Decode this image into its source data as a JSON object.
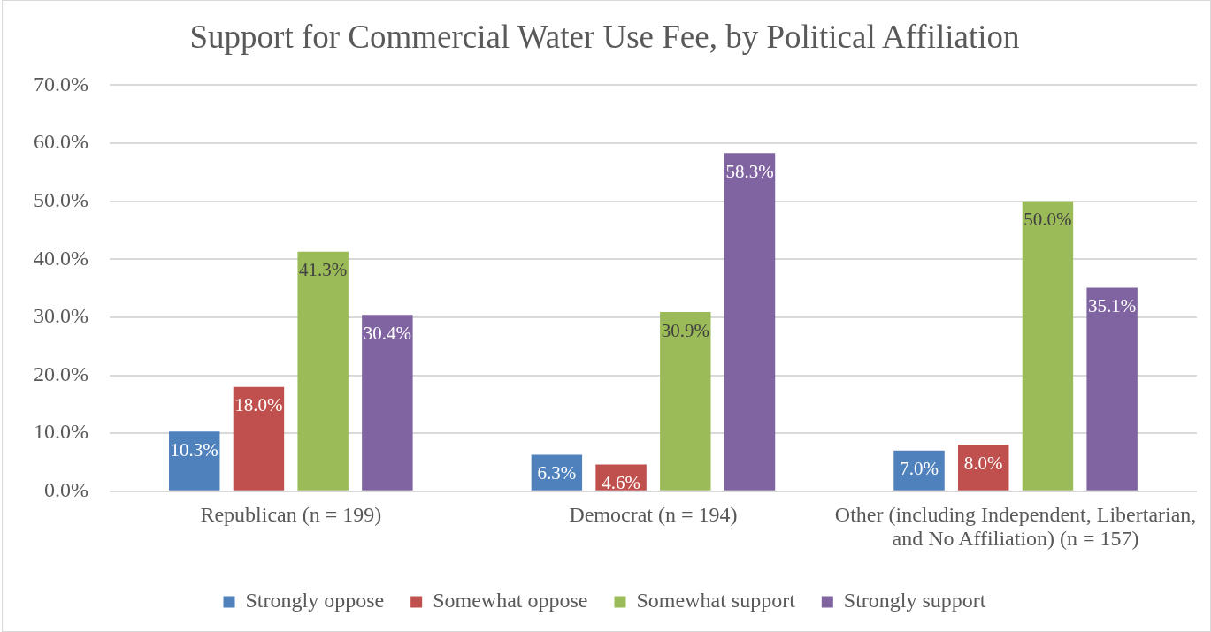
{
  "chart_data": {
    "type": "bar",
    "title": "Support for Commercial Water Use Fee, by Political Affiliation",
    "categories": [
      "Republican (n = 199)",
      "Democrat (n = 194)",
      "Other (including Independent, Libertarian, and No Affiliation) (n = 157)"
    ],
    "series": [
      {
        "name": "Strongly oppose",
        "color": "#4f81bd",
        "values": [
          10.3,
          6.3,
          7.0
        ],
        "value_labels": [
          "10.3%",
          "6.3%",
          "7.0%"
        ]
      },
      {
        "name": "Somewhat oppose",
        "color": "#c0504d",
        "values": [
          18.0,
          4.6,
          8.0
        ],
        "value_labels": [
          "18.0%",
          "4.6%",
          "8.0%"
        ]
      },
      {
        "name": "Somewhat support",
        "color": "#9bbb59",
        "values": [
          41.3,
          30.9,
          50.0
        ],
        "value_labels": [
          "41.3%",
          "30.9%",
          "50.0%"
        ]
      },
      {
        "name": "Strongly support",
        "color": "#8064a2",
        "values": [
          30.4,
          58.3,
          35.1
        ],
        "value_labels": [
          "30.4%",
          "58.3%",
          "35.1%"
        ]
      }
    ],
    "ylim": [
      0,
      70
    ],
    "yticks": [
      {
        "value": 0,
        "label": "0.0%"
      },
      {
        "value": 10,
        "label": "10.0%"
      },
      {
        "value": 20,
        "label": "20.0%"
      },
      {
        "value": 30,
        "label": "30.0%"
      },
      {
        "value": 40,
        "label": "40.0%"
      },
      {
        "value": 50,
        "label": "50.0%"
      },
      {
        "value": 60,
        "label": "60.0%"
      },
      {
        "value": 70,
        "label": "70.0%"
      }
    ],
    "grid": "y",
    "legend": "bottom"
  }
}
